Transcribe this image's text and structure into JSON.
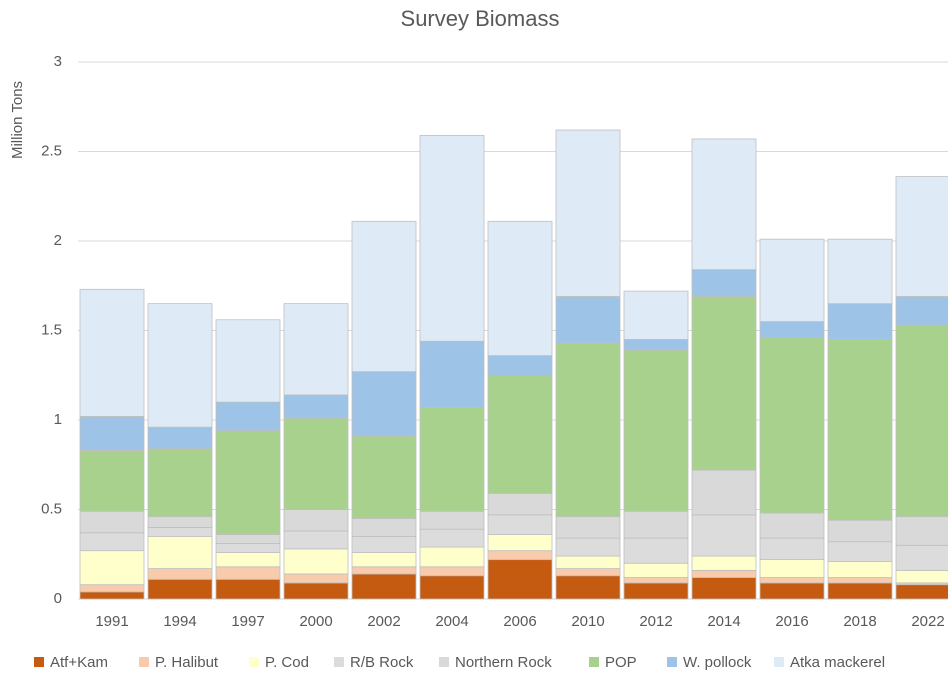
{
  "chart_data": {
    "type": "stacked_bar",
    "title": "Survey Biomass",
    "y_label": "Million Tons",
    "categories": [
      "1991",
      "1994",
      "1997",
      "2000",
      "2002",
      "2004",
      "2006",
      "2010",
      "2012",
      "2014",
      "2016",
      "2018",
      "2022"
    ],
    "series": [
      {
        "name": "Atf+Kam",
        "color": "#c55a11",
        "values": [
          0.04,
          0.11,
          0.11,
          0.09,
          0.14,
          0.13,
          0.22,
          0.13,
          0.09,
          0.12,
          0.09,
          0.09,
          0.08
        ]
      },
      {
        "name": "P. Halibut",
        "color": "#f8cbad",
        "values": [
          0.04,
          0.06,
          0.07,
          0.05,
          0.04,
          0.05,
          0.05,
          0.04,
          0.03,
          0.04,
          0.03,
          0.03,
          0.01
        ]
      },
      {
        "name": "P. Cod",
        "color": "#ffffcc",
        "values": [
          0.19,
          0.18,
          0.08,
          0.14,
          0.08,
          0.11,
          0.09,
          0.07,
          0.08,
          0.08,
          0.1,
          0.09,
          0.07
        ]
      },
      {
        "name": "R/B Rock",
        "color": "#dcdcdc",
        "values": [
          0.1,
          0.05,
          0.05,
          0.1,
          0.09,
          0.1,
          0.11,
          0.1,
          0.14,
          0.23,
          0.12,
          0.11,
          0.14
        ]
      },
      {
        "name": "Northern Rock",
        "color": "#d9d9d9",
        "values": [
          0.12,
          0.06,
          0.05,
          0.12,
          0.1,
          0.1,
          0.12,
          0.12,
          0.15,
          0.25,
          0.14,
          0.12,
          0.16
        ]
      },
      {
        "name": "POP",
        "color": "#a9d18e",
        "values": [
          0.34,
          0.38,
          0.58,
          0.51,
          0.46,
          0.58,
          0.66,
          0.97,
          0.9,
          0.97,
          0.98,
          1.01,
          1.07
        ]
      },
      {
        "name": "W. pollock",
        "color": "#9dc3e6",
        "values": [
          0.19,
          0.12,
          0.16,
          0.13,
          0.36,
          0.37,
          0.11,
          0.26,
          0.06,
          0.15,
          0.09,
          0.2,
          0.16
        ]
      },
      {
        "name": "Atka mackerel",
        "color": "#deebf7",
        "values": [
          0.71,
          0.69,
          0.46,
          0.51,
          0.84,
          1.15,
          0.75,
          0.93,
          0.27,
          0.73,
          0.46,
          0.36,
          0.67
        ]
      }
    ],
    "ylim": [
      0,
      3
    ],
    "yticks": [
      0,
      0.5,
      1,
      1.5,
      2,
      2.5,
      3
    ],
    "grid": true,
    "legend": "bottom"
  }
}
